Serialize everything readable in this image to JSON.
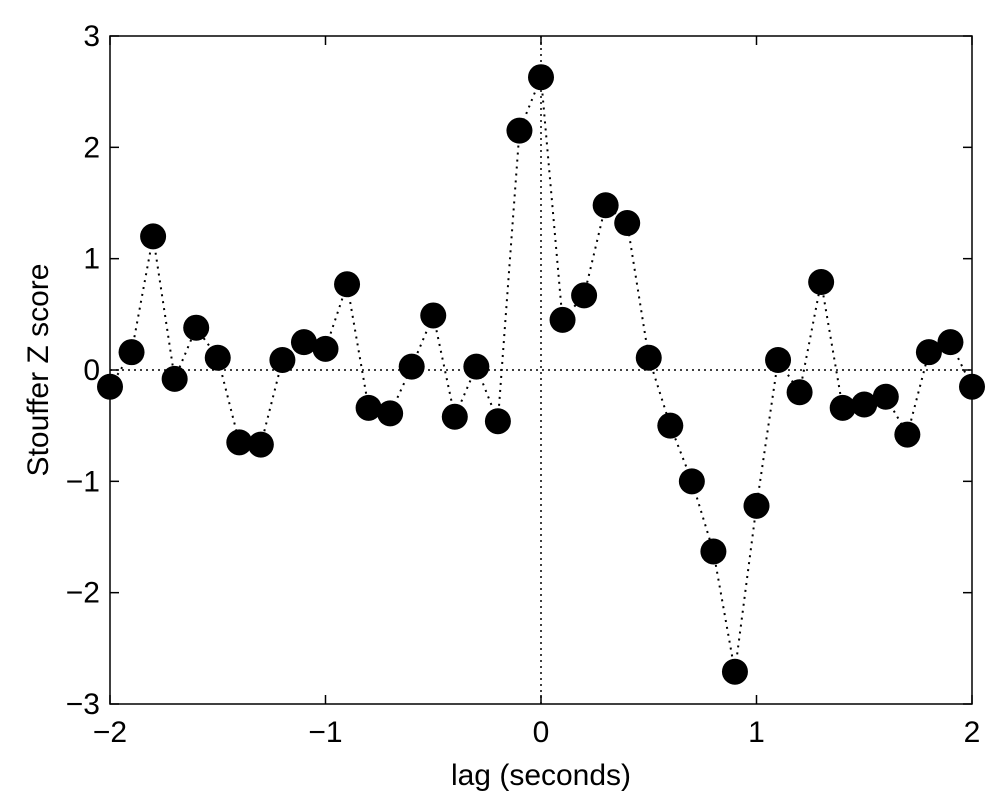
{
  "chart_data": {
    "type": "scatter",
    "title": "",
    "xlabel": "lag (seconds)",
    "ylabel": "Stouffer Z score",
    "xlim": [
      -2,
      2
    ],
    "ylim": [
      -3,
      3
    ],
    "xticks": [
      -2,
      -1,
      0,
      1,
      2
    ],
    "xtick_labels": [
      "−2",
      "−1",
      "0",
      "1",
      "2"
    ],
    "yticks": [
      -3,
      -2,
      -1,
      0,
      1,
      2,
      3
    ],
    "ytick_labels": [
      "−3",
      "−2",
      "−1",
      "0",
      "1",
      "2",
      "3"
    ],
    "grid": false,
    "reference_lines": {
      "y": 0,
      "x": 0,
      "style": "dotted"
    },
    "connector": "dotted",
    "marker_color": "#000000",
    "series": [
      {
        "x": [
          -2.0,
          -1.9,
          -1.8,
          -1.7,
          -1.6,
          -1.5,
          -1.4,
          -1.3,
          -1.2,
          -1.1,
          -1.0,
          -0.9,
          -0.8,
          -0.7,
          -0.6,
          -0.5,
          -0.4,
          -0.3,
          -0.2,
          -0.1,
          0.0,
          0.1,
          0.2,
          0.3,
          0.4,
          0.5,
          0.6,
          0.7,
          0.8,
          0.9,
          1.0,
          1.1,
          1.2,
          1.3,
          1.4,
          1.5,
          1.6,
          1.7,
          1.8,
          1.9,
          2.0
        ],
        "y": [
          -0.15,
          0.16,
          1.2,
          -0.08,
          0.38,
          0.11,
          -0.65,
          -0.67,
          0.09,
          0.25,
          0.19,
          0.77,
          -0.34,
          -0.39,
          0.03,
          0.49,
          -0.42,
          0.03,
          -0.46,
          2.15,
          2.63,
          0.45,
          0.67,
          1.48,
          1.32,
          0.11,
          -0.5,
          -1.0,
          -1.63,
          -2.71,
          -1.22,
          0.09,
          -0.2,
          0.79,
          -0.34,
          -0.31,
          -0.24,
          -0.58,
          0.16,
          0.25,
          -0.15
        ]
      }
    ]
  }
}
